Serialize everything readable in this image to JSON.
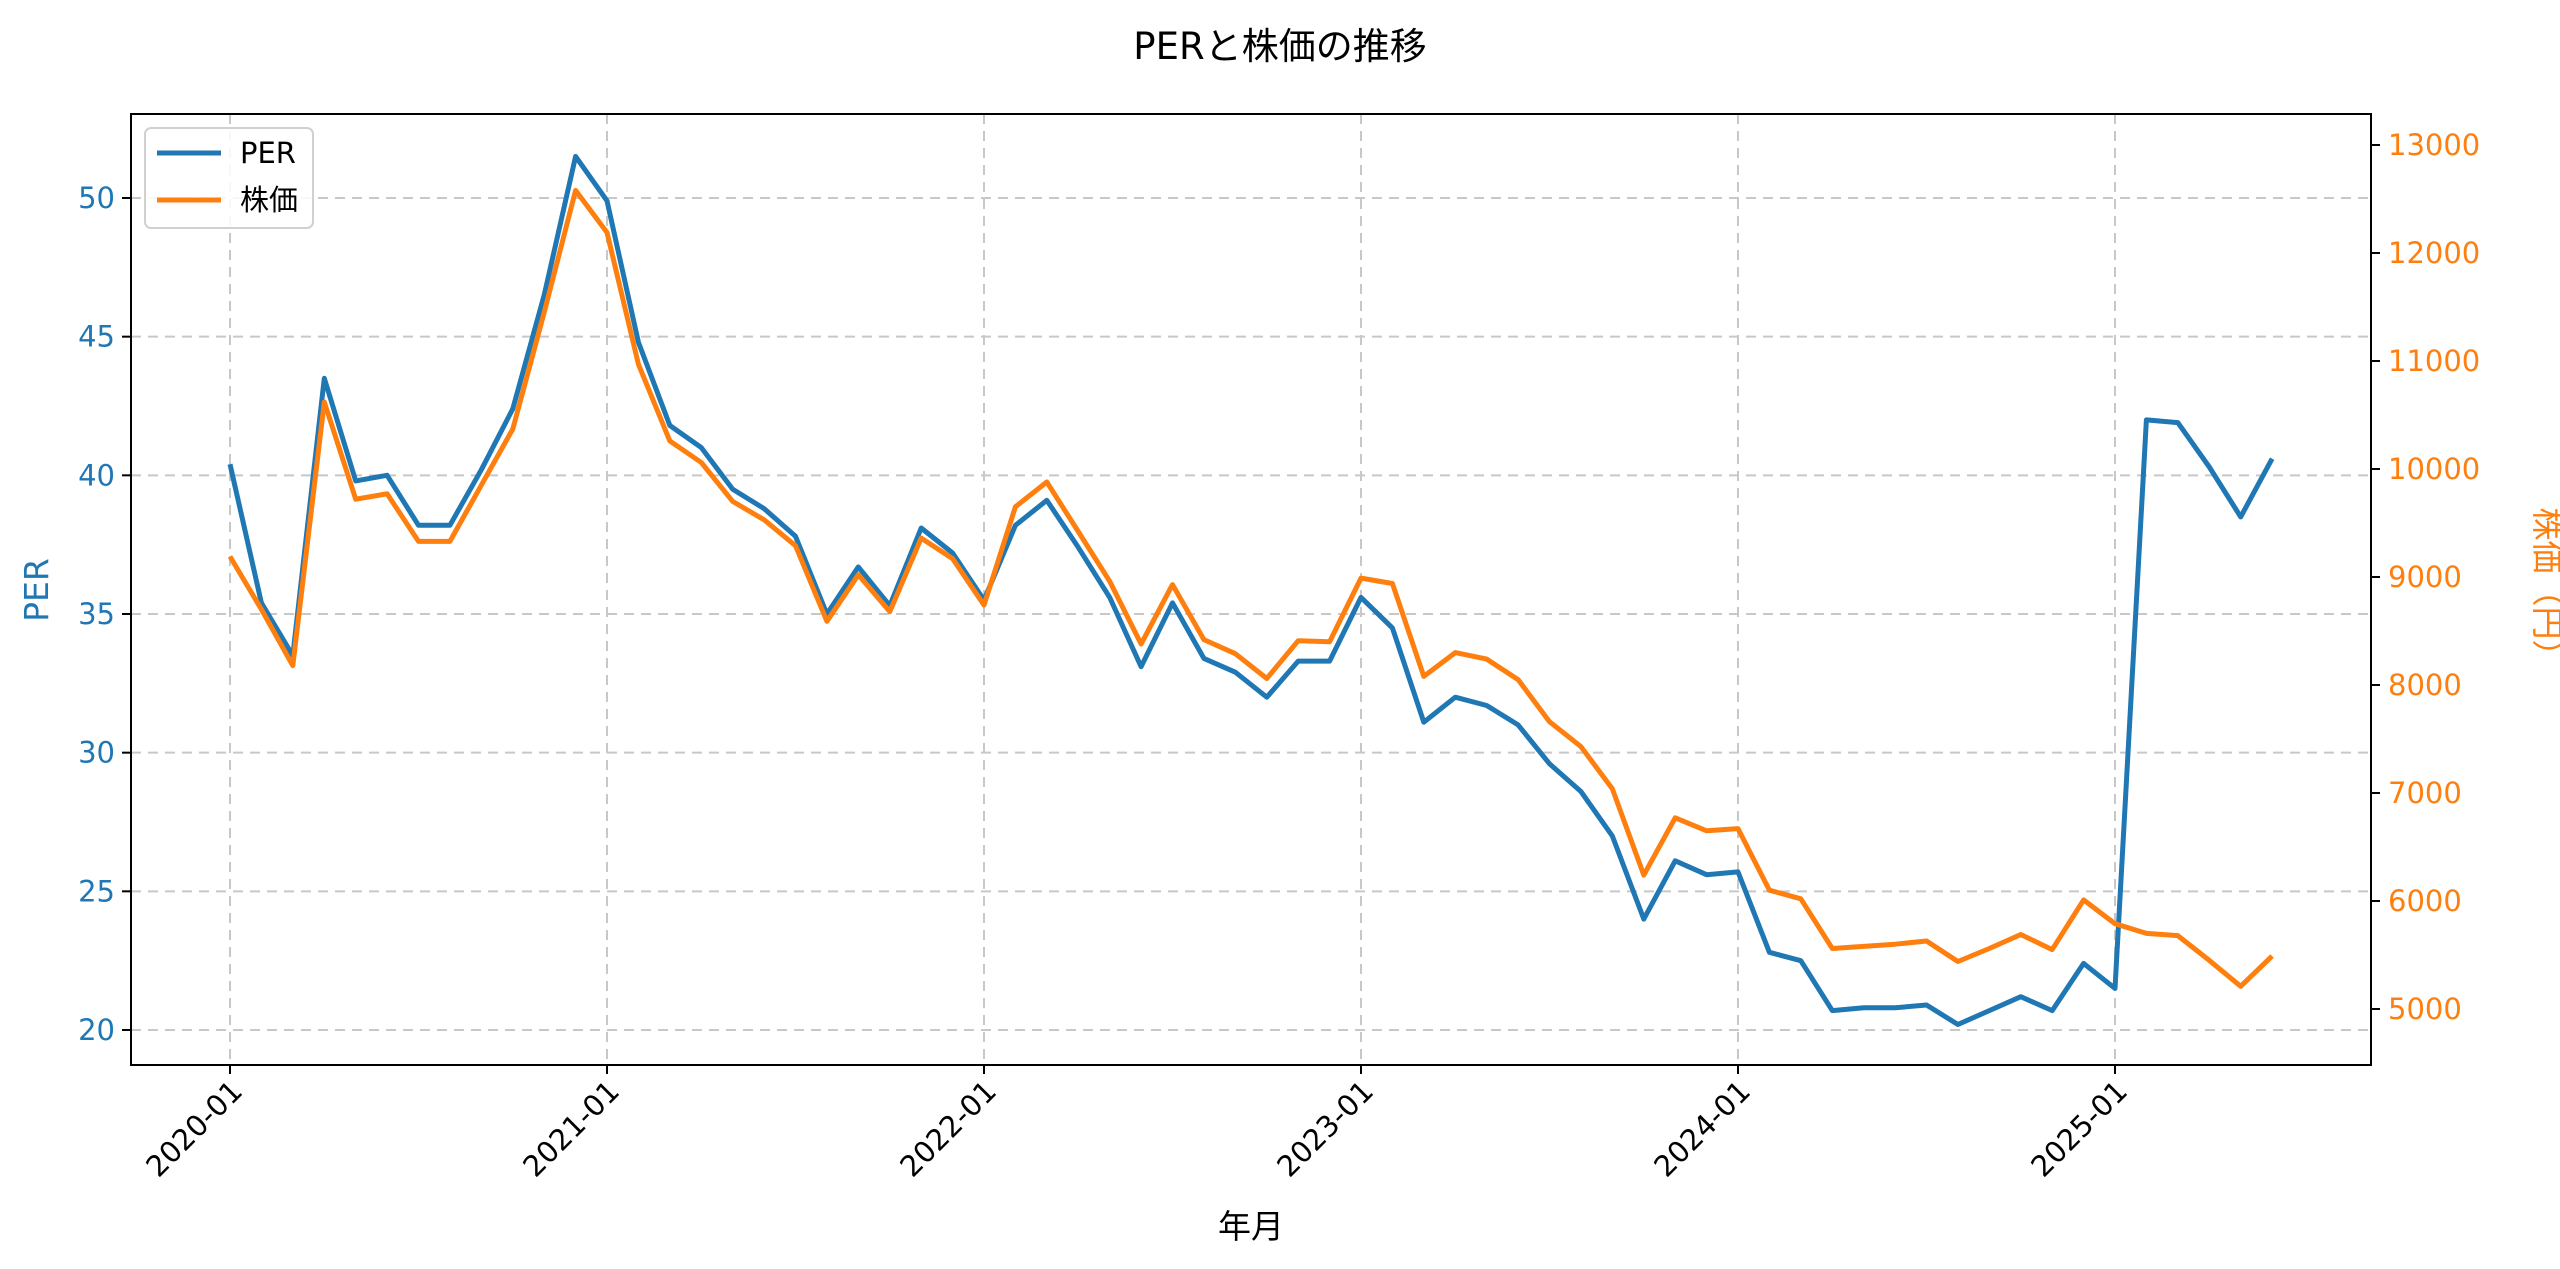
{
  "title": "PERと株価の推移",
  "colors": {
    "per": "#1f77b4",
    "price": "#ff7f0e",
    "grid": "#c8c8c8"
  },
  "legend": {
    "items": [
      {
        "label": "PER",
        "color": "#1f77b4"
      },
      {
        "label": "株価",
        "color": "#ff7f0e"
      }
    ]
  },
  "axes": {
    "x_label": "年月",
    "y_left_label": "PER",
    "y_right_label": "株価（円）",
    "x_ticks": [
      "2020-01",
      "2021-01",
      "2022-01",
      "2023-01",
      "2024-01",
      "2025-01"
    ],
    "y_left_ticks": [
      20,
      25,
      30,
      35,
      40,
      45,
      50
    ],
    "y_right_ticks": [
      5000,
      6000,
      7000,
      8000,
      9000,
      10000,
      11000,
      12000,
      13000
    ]
  },
  "chart_data": {
    "type": "line",
    "title": "PERと株価の推移",
    "xlabel": "年月",
    "ylabel": "PER",
    "y2label": "株価（円）",
    "ylim": [
      18.7,
      53.0
    ],
    "y2lim": [
      4480,
      13500
    ],
    "grid": true,
    "legend_position": "upper left",
    "x": [
      "2020-01",
      "2020-02",
      "2020-03",
      "2020-04",
      "2020-05",
      "2020-06",
      "2020-07",
      "2020-08",
      "2020-09",
      "2020-10",
      "2020-11",
      "2020-12",
      "2021-01",
      "2021-02",
      "2021-03",
      "2021-04",
      "2021-05",
      "2021-06",
      "2021-07",
      "2021-08",
      "2021-09",
      "2021-10",
      "2021-11",
      "2021-12",
      "2022-01",
      "2022-02",
      "2022-03",
      "2022-04",
      "2022-05",
      "2022-06",
      "2022-07",
      "2022-08",
      "2022-09",
      "2022-10",
      "2022-11",
      "2022-12",
      "2023-01",
      "2023-02",
      "2023-03",
      "2023-04",
      "2023-05",
      "2023-06",
      "2023-07",
      "2023-08",
      "2023-09",
      "2023-10",
      "2023-11",
      "2023-12",
      "2024-01",
      "2024-02",
      "2024-03",
      "2024-04",
      "2024-05",
      "2024-06",
      "2024-07",
      "2024-08",
      "2024-09",
      "2024-10",
      "2024-11",
      "2024-12",
      "2025-01",
      "2025-02",
      "2025-03",
      "2025-04",
      "2025-05",
      "2025-06"
    ],
    "series": [
      {
        "name": "PER",
        "axis": "left",
        "color": "#1f77b4",
        "values": [
          40.4,
          35.4,
          33.5,
          43.5,
          39.8,
          40.0,
          38.2,
          38.2,
          40.2,
          42.4,
          46.5,
          51.5,
          49.9,
          44.8,
          41.8,
          41.0,
          39.5,
          38.8,
          37.8,
          35.0,
          36.7,
          35.3,
          38.1,
          37.2,
          35.5,
          38.2,
          39.1,
          37.4,
          35.6,
          33.1,
          35.4,
          33.4,
          32.9,
          32.0,
          33.3,
          33.3,
          35.6,
          34.5,
          31.1,
          32.0,
          31.7,
          31.0,
          29.6,
          28.6,
          27.0,
          24.0,
          26.1,
          25.6,
          25.7,
          22.8,
          22.5,
          20.7,
          20.8,
          20.8,
          20.9,
          20.2,
          20.7,
          21.2,
          20.7,
          22.4,
          21.5,
          42.0,
          41.9,
          40.3,
          38.5,
          40.6
        ]
      },
      {
        "name": "株価",
        "axis": "right",
        "color": "#ff7f0e",
        "values": [
          9190,
          8700,
          8180,
          10620,
          9720,
          9770,
          9330,
          9330,
          9850,
          10370,
          11450,
          12580,
          12190,
          10970,
          10260,
          10060,
          9700,
          9530,
          9290,
          8590,
          9020,
          8680,
          9360,
          9170,
          8740,
          9650,
          9880,
          9420,
          8960,
          8380,
          8930,
          8420,
          8290,
          8060,
          8410,
          8400,
          8990,
          8940,
          8080,
          8300,
          8240,
          8050,
          7660,
          7430,
          7040,
          6240,
          6770,
          6650,
          6670,
          6100,
          6020,
          5560,
          5580,
          5600,
          5630,
          5440,
          5560,
          5690,
          5550,
          6010,
          5790,
          5700,
          5680,
          5450,
          5210,
          5490
        ]
      }
    ]
  }
}
